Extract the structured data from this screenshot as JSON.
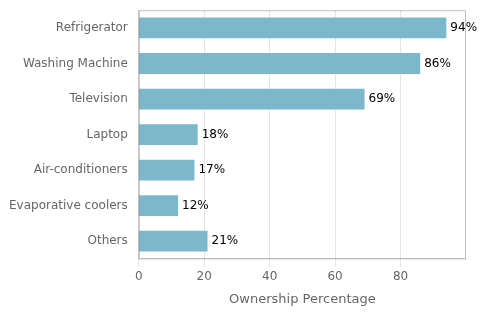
{
  "chart_data": {
    "type": "bar",
    "orientation": "horizontal",
    "categories": [
      "Refrigerator",
      "Washing Machine",
      "Television",
      "Laptop",
      "Air-conditioners",
      "Evaporative coolers",
      "Others"
    ],
    "values": [
      94,
      86,
      69,
      18,
      17,
      12,
      21
    ],
    "value_labels": [
      "94%",
      "86%",
      "69%",
      "18%",
      "17%",
      "12%",
      "21%"
    ],
    "color": "#7bb8cc",
    "xlabel": "Ownership Percentage",
    "xlim": [
      0,
      100
    ],
    "xticks": [
      0,
      20,
      40,
      60,
      80
    ],
    "grid": true
  }
}
